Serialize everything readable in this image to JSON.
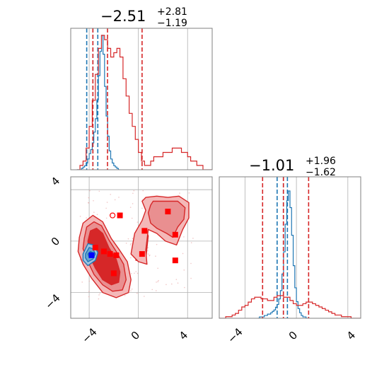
{
  "colors": {
    "red": "#d62728",
    "red_fill_light": "#f4b8b8",
    "red_fill_mid": "#e98f90",
    "red_fill_dark": "#d62728",
    "blue": "#1f77b4",
    "grid": "#b0b0b0",
    "marker_red": "#ff0000",
    "marker_blue": "#0000ff"
  },
  "titles": {
    "param1": {
      "median": "−2.51",
      "plus": "+2.81",
      "minus": "−1.19"
    },
    "param2": {
      "median": "−1.01",
      "plus": "+1.96",
      "minus": "−1.62"
    }
  },
  "chart_data": [
    {
      "type": "histogram",
      "panel": "marginal-param1",
      "xlim": [
        -5.5,
        6
      ],
      "grid": true,
      "x_tick_labels": [],
      "series": [
        {
          "name": "",
          "color": "#1f77b4",
          "bin_edges_start": -5.0,
          "bin_width": 0.125,
          "counts": [
            0,
            0,
            0,
            1,
            2,
            3,
            5,
            8,
            12,
            15,
            20,
            28,
            38,
            52,
            70,
            88,
            100,
            86,
            62,
            40,
            25,
            14,
            8,
            5,
            3,
            2,
            1,
            0
          ],
          "quantile_lines": [
            -4.2,
            -3.7,
            -3.3
          ]
        },
        {
          "name": "",
          "color": "#d62728",
          "bin_edges_start": -5.0,
          "bin_width": 0.25,
          "counts": [
            0,
            1,
            2,
            5,
            10,
            16,
            22,
            28,
            31,
            30,
            28,
            26,
            27,
            28,
            26,
            21,
            17,
            13,
            10,
            7,
            4,
            2,
            1,
            1,
            2,
            3,
            3,
            3,
            4,
            4,
            4,
            5,
            5,
            5,
            4,
            4,
            3,
            2,
            2,
            1,
            1,
            0,
            0,
            0,
            0
          ],
          "quantile_lines": [
            -3.7,
            -2.51,
            0.3
          ]
        }
      ]
    },
    {
      "type": "contour",
      "panel": "joint",
      "xlim": [
        -5.5,
        6
      ],
      "ylim": [
        -6,
        5
      ],
      "grid": true,
      "x_ticks": [
        "−4",
        "0",
        "4"
      ],
      "y_ticks": [
        "−4",
        "0",
        "4"
      ],
      "red_levels": {
        "outer": [
          [
            -4.8,
            0.3
          ],
          [
            -4.5,
            1.4
          ],
          [
            -3.7,
            2.0
          ],
          [
            -2.9,
            1.5
          ],
          [
            -2.2,
            0.2
          ],
          [
            -1.6,
            -0.6
          ],
          [
            -0.9,
            -1.6
          ],
          [
            -0.6,
            -3.0
          ],
          [
            -0.8,
            -4.0
          ],
          [
            -1.8,
            -4.4
          ],
          [
            -2.9,
            -4.0
          ],
          [
            -3.8,
            -2.9
          ],
          [
            -4.5,
            -1.8
          ],
          [
            -4.9,
            -0.8
          ]
        ],
        "middle": [
          [
            -4.4,
            0.2
          ],
          [
            -4.2,
            1.1
          ],
          [
            -3.6,
            1.5
          ],
          [
            -3.0,
            1.2
          ],
          [
            -2.4,
            0.1
          ],
          [
            -1.8,
            -0.8
          ],
          [
            -1.2,
            -1.8
          ],
          [
            -1.0,
            -3.0
          ],
          [
            -1.3,
            -3.8
          ],
          [
            -2.1,
            -3.9
          ],
          [
            -2.9,
            -3.4
          ],
          [
            -3.6,
            -2.6
          ],
          [
            -4.1,
            -1.6
          ],
          [
            -4.5,
            -0.6
          ]
        ],
        "inner": [
          [
            -4.1,
            0.0
          ],
          [
            -3.9,
            0.8
          ],
          [
            -3.4,
            1.0
          ],
          [
            -2.9,
            0.6
          ],
          [
            -2.4,
            -0.5
          ],
          [
            -1.8,
            -1.4
          ],
          [
            -1.5,
            -2.4
          ],
          [
            -1.6,
            -3.2
          ],
          [
            -2.2,
            -3.4
          ],
          [
            -2.9,
            -3.0
          ],
          [
            -3.5,
            -2.1
          ],
          [
            -4.0,
            -1.1
          ]
        ],
        "blob_outer": [
          [
            0.6,
            3.4
          ],
          [
            1.5,
            3.5
          ],
          [
            2.4,
            3.4
          ],
          [
            3.3,
            3.5
          ],
          [
            4.1,
            3.0
          ],
          [
            4.1,
            1.8
          ],
          [
            3.6,
            0.9
          ],
          [
            3.1,
            -0.3
          ],
          [
            2.2,
            0.0
          ],
          [
            1.5,
            0.6
          ],
          [
            0.8,
            0.9
          ],
          [
            0.6,
            -0.7
          ],
          [
            0.7,
            -1.8
          ],
          [
            0.0,
            -1.6
          ],
          [
            -0.6,
            -1.0
          ],
          [
            -0.3,
            0.6
          ],
          [
            0.3,
            1.6
          ],
          [
            0.6,
            2.4
          ],
          [
            0.3,
            3.1
          ]
        ],
        "blob_middle": [
          [
            1.2,
            3.1
          ],
          [
            2.3,
            3.1
          ],
          [
            3.2,
            3.1
          ],
          [
            3.8,
            2.6
          ],
          [
            3.7,
            1.7
          ],
          [
            3.2,
            1.1
          ],
          [
            2.8,
            0.3
          ],
          [
            2.3,
            0.6
          ],
          [
            1.5,
            1.0
          ],
          [
            1.0,
            1.4
          ],
          [
            0.8,
            2.2
          ],
          [
            1.0,
            2.8
          ]
        ],
        "tail_outer": [
          [
            -0.2,
            -1.5
          ],
          [
            0.6,
            -1.4
          ],
          [
            0.8,
            0.4
          ],
          [
            0.5,
            1.3
          ],
          [
            0.1,
            1.2
          ],
          [
            -0.3,
            0.0
          ]
        ]
      },
      "blue_levels": {
        "outer": [
          [
            -4.5,
            -1.0
          ],
          [
            -4.1,
            -0.2
          ],
          [
            -3.6,
            -0.3
          ],
          [
            -3.3,
            -0.9
          ],
          [
            -3.5,
            -1.5
          ],
          [
            -4.1,
            -1.9
          ],
          [
            -4.5,
            -1.5
          ]
        ],
        "middle": [
          [
            -4.3,
            -1.0
          ],
          [
            -4.0,
            -0.5
          ],
          [
            -3.7,
            -0.6
          ],
          [
            -3.5,
            -1.0
          ],
          [
            -3.7,
            -1.4
          ],
          [
            -4.1,
            -1.6
          ],
          [
            -4.3,
            -1.3
          ]
        ],
        "inner": [
          [
            -4.1,
            -1.0
          ],
          [
            -3.9,
            -0.8
          ],
          [
            -3.7,
            -0.9
          ],
          [
            -3.8,
            -1.2
          ],
          [
            -4.0,
            -1.3
          ]
        ]
      },
      "red_markers": [
        {
          "x": -1.5,
          "y": 2.0
        },
        {
          "x": -3.5,
          "y": -0.5
        },
        {
          "x": -2.8,
          "y": -0.8
        },
        {
          "x": -2.3,
          "y": -1.0
        },
        {
          "x": -1.8,
          "y": -1.1
        },
        {
          "x": -2.0,
          "y": -2.5
        },
        {
          "x": 0.5,
          "y": 0.8
        },
        {
          "x": 0.3,
          "y": -1.0
        },
        {
          "x": 2.4,
          "y": 2.3
        },
        {
          "x": 3.0,
          "y": 0.5
        },
        {
          "x": 3.0,
          "y": -1.5
        }
      ],
      "red_open_markers": [
        {
          "x": -2.1,
          "y": 2.0
        }
      ],
      "blue_markers": [
        {
          "x": -3.8,
          "y": -1.1
        }
      ]
    },
    {
      "type": "histogram",
      "panel": "marginal-param2",
      "xlim": [
        -6,
        5
      ],
      "grid": true,
      "x_ticks": [
        "−4",
        "0",
        "4"
      ],
      "series": [
        {
          "name": "",
          "color": "#1f77b4",
          "bin_edges_start": -3.0,
          "bin_width": 0.125,
          "counts": [
            0,
            1,
            1,
            1,
            2,
            2,
            3,
            3,
            4,
            5,
            6,
            8,
            10,
            14,
            20,
            32,
            48,
            68,
            85,
            92,
            80,
            60,
            38,
            22,
            12,
            7,
            4,
            2,
            1,
            1,
            0,
            0
          ],
          "quantile_lines": [
            -1.5,
            -1.01,
            -0.7
          ]
        },
        {
          "name": "",
          "color": "#d62728",
          "bin_edges_start": -6.0,
          "bin_width": 0.25,
          "counts": [
            0,
            0,
            1,
            1,
            2,
            3,
            5,
            7,
            8,
            10,
            12,
            13,
            13,
            12,
            12,
            11,
            11,
            13,
            14,
            14,
            13,
            13,
            11,
            9,
            8,
            8,
            9,
            10,
            10,
            9,
            8,
            7,
            6,
            5,
            4,
            3,
            2,
            2,
            1,
            1,
            1,
            0,
            0,
            0
          ],
          "quantile_lines": [
            -2.63,
            -1.01,
            0.95
          ]
        }
      ]
    }
  ]
}
